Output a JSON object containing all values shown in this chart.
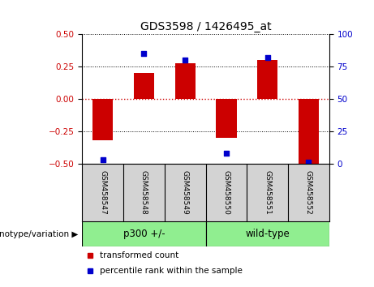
{
  "title": "GDS3598 / 1426495_at",
  "samples": [
    "GSM458547",
    "GSM458548",
    "GSM458549",
    "GSM458550",
    "GSM458551",
    "GSM458552"
  ],
  "bar_values": [
    -0.32,
    0.2,
    0.28,
    -0.3,
    0.3,
    -0.5
  ],
  "percentile_values": [
    3,
    85,
    80,
    8,
    82,
    1
  ],
  "ylim_left": [
    -0.5,
    0.5
  ],
  "ylim_right": [
    0,
    100
  ],
  "yticks_left": [
    -0.5,
    -0.25,
    0,
    0.25,
    0.5
  ],
  "yticks_right": [
    0,
    25,
    50,
    75,
    100
  ],
  "bar_color": "#CC0000",
  "dot_color": "#0000CC",
  "hline_zero_color": "#CC0000",
  "hline_color": "black",
  "bar_width": 0.5,
  "sample_box_color": "#d3d3d3",
  "group1_label": "p300 +/-",
  "group2_label": "wild-type",
  "group_color": "#90ee90",
  "group_divider": 2.5,
  "xlabel_group": "genotype/variation",
  "legend_items": [
    {
      "label": "transformed count",
      "color": "#CC0000"
    },
    {
      "label": "percentile rank within the sample",
      "color": "#0000CC"
    }
  ],
  "tick_label_color_left": "#CC0000",
  "tick_label_color_right": "#0000CC"
}
